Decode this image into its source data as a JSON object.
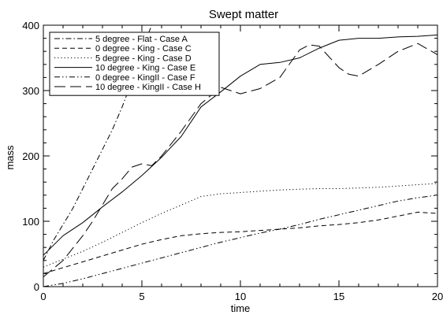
{
  "chart_data": {
    "type": "line",
    "title": "Swept matter",
    "xlabel": "time",
    "ylabel": "mass",
    "xlim": [
      0,
      20
    ],
    "ylim": [
      0,
      400
    ],
    "xticks": [
      0,
      5,
      10,
      15,
      20
    ],
    "yticks": [
      0,
      100,
      200,
      300,
      400
    ],
    "grid": false,
    "legend_position": "top-left",
    "series": [
      {
        "name": "5 degree - Flat - Case A",
        "dash": "dash-dot",
        "x": [
          0,
          0.5,
          1,
          1.5,
          2,
          2.5,
          3,
          3.5,
          4,
          4.5,
          5,
          5.3,
          5.5
        ],
        "y": [
          40,
          70,
          95,
          120,
          150,
          180,
          210,
          240,
          275,
          315,
          360,
          385,
          400
        ]
      },
      {
        "name": "0 degree - King - Case C",
        "dash": "dash",
        "x": [
          0,
          1,
          2,
          3,
          4,
          5,
          6,
          7,
          8,
          9,
          10,
          11,
          12,
          13,
          14,
          15,
          16,
          17,
          18,
          19,
          20
        ],
        "y": [
          20,
          29,
          38,
          47,
          56,
          65,
          72,
          78,
          81,
          83,
          84,
          86,
          88,
          90,
          93,
          95,
          98,
          102,
          108,
          114,
          112
        ]
      },
      {
        "name": "5 degree - King - Case D",
        "dash": "dot",
        "x": [
          0,
          1,
          2,
          3,
          4,
          5,
          6,
          7,
          8,
          9,
          10,
          11,
          12,
          13,
          14,
          15,
          16,
          17,
          18,
          19,
          20
        ],
        "y": [
          30,
          42,
          54,
          68,
          83,
          98,
          112,
          125,
          138,
          142,
          144,
          146,
          148,
          149,
          150,
          150,
          151,
          152,
          154,
          156,
          158
        ]
      },
      {
        "name": "10 degree - King - Case E",
        "dash": "solid",
        "x": [
          0,
          1,
          2,
          3,
          4,
          5,
          6,
          7,
          8,
          9,
          10,
          11,
          12,
          13,
          14,
          15,
          16,
          17,
          18,
          19,
          20
        ],
        "y": [
          48,
          78,
          98,
          122,
          145,
          170,
          198,
          230,
          275,
          298,
          322,
          340,
          343,
          350,
          365,
          377,
          380,
          380,
          382,
          383,
          385
        ]
      },
      {
        "name": "0 degree - KingII - Case F",
        "dash": "dash-dot-dot",
        "x": [
          0,
          1,
          2,
          3,
          4,
          5,
          6,
          7,
          8,
          9,
          10,
          11,
          12,
          13,
          14,
          15,
          16,
          17,
          18,
          19,
          20
        ],
        "y": [
          0,
          5,
          12,
          20,
          28,
          36,
          44,
          52,
          60,
          68,
          75,
          82,
          88,
          95,
          103,
          110,
          117,
          124,
          131,
          136,
          140
        ]
      },
      {
        "name": "10 degree - KingII - Case H",
        "dash": "long-dash",
        "x": [
          0,
          1,
          2,
          2.5,
          3,
          3.5,
          4,
          4.5,
          5,
          5.5,
          6,
          7,
          8,
          9,
          9.5,
          10,
          11,
          12,
          13,
          13.5,
          14,
          15,
          15.5,
          16,
          17,
          18,
          19,
          20
        ],
        "y": [
          15,
          40,
          78,
          100,
          125,
          150,
          165,
          183,
          188,
          185,
          200,
          238,
          280,
          305,
          300,
          295,
          303,
          320,
          362,
          370,
          368,
          335,
          325,
          322,
          340,
          360,
          372,
          355
        ]
      }
    ]
  }
}
